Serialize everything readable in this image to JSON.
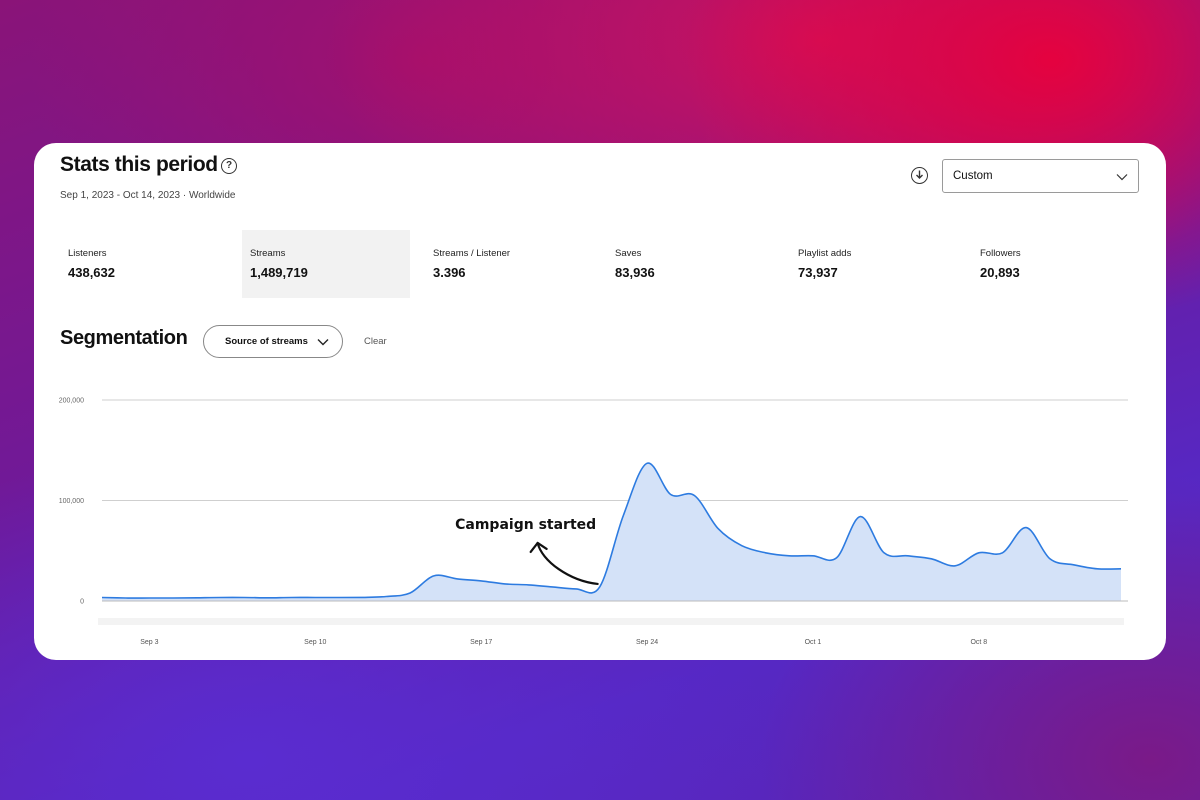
{
  "header": {
    "title": "Stats this period",
    "subtitle": "Sep 1, 2023 - Oct 14, 2023 · Worldwide",
    "range_select": "Custom"
  },
  "icons": {
    "help": "question-circle-icon",
    "download": "download-circle-icon",
    "dropdown": "chevron-down-icon"
  },
  "metrics": [
    {
      "label": "Listeners",
      "value": "438,632"
    },
    {
      "label": "Streams",
      "value": "1,489,719"
    },
    {
      "label": "Streams / Listener",
      "value": "3.396"
    },
    {
      "label": "Saves",
      "value": "83,936"
    },
    {
      "label": "Playlist adds",
      "value": "73,937"
    },
    {
      "label": "Followers",
      "value": "20,893"
    }
  ],
  "segmentation": {
    "title": "Segmentation",
    "select": "Source of streams",
    "clear": "Clear"
  },
  "chart_data": {
    "type": "area",
    "ylim": [
      0,
      200000
    ],
    "yticks": [
      {
        "value": 200000,
        "label": "200,000"
      },
      {
        "value": 100000,
        "label": "100,000"
      },
      {
        "value": 0,
        "label": "0"
      }
    ],
    "xticks": [
      {
        "date": "2023-09-03",
        "label": "Sep 3"
      },
      {
        "date": "2023-09-10",
        "label": "Sep 10"
      },
      {
        "date": "2023-09-17",
        "label": "Sep 17"
      },
      {
        "date": "2023-09-24",
        "label": "Sep 24"
      },
      {
        "date": "2023-10-01",
        "label": "Oct 1"
      },
      {
        "date": "2023-10-08",
        "label": "Oct 8"
      }
    ],
    "x": [
      "2023-09-01",
      "2023-09-02",
      "2023-09-03",
      "2023-09-04",
      "2023-09-05",
      "2023-09-06",
      "2023-09-07",
      "2023-09-08",
      "2023-09-09",
      "2023-09-10",
      "2023-09-11",
      "2023-09-12",
      "2023-09-13",
      "2023-09-14",
      "2023-09-15",
      "2023-09-16",
      "2023-09-17",
      "2023-09-18",
      "2023-09-19",
      "2023-09-20",
      "2023-09-21",
      "2023-09-22",
      "2023-09-23",
      "2023-09-24",
      "2023-09-25",
      "2023-09-26",
      "2023-09-27",
      "2023-09-28",
      "2023-09-29",
      "2023-09-30",
      "2023-10-01",
      "2023-10-02",
      "2023-10-03",
      "2023-10-04",
      "2023-10-05",
      "2023-10-06",
      "2023-10-07",
      "2023-10-08",
      "2023-10-09",
      "2023-10-10",
      "2023-10-11",
      "2023-10-12",
      "2023-10-13",
      "2023-10-14"
    ],
    "values": [
      3500,
      3000,
      3000,
      3000,
      3200,
      3500,
      3500,
      3200,
      3500,
      3500,
      3500,
      3600,
      4500,
      8000,
      25000,
      22000,
      20000,
      17000,
      16000,
      14000,
      12000,
      14000,
      85000,
      137000,
      106000,
      105000,
      72000,
      55000,
      48000,
      45000,
      45000,
      43000,
      84000,
      48000,
      45000,
      42000,
      35000,
      48000,
      48000,
      73000,
      42000,
      36000,
      32000,
      32000
    ],
    "color": "#2d7be0",
    "fill": "#d4e2f8",
    "annotation": {
      "text": "Campaign started",
      "date": "2023-09-22"
    },
    "grid": true
  }
}
